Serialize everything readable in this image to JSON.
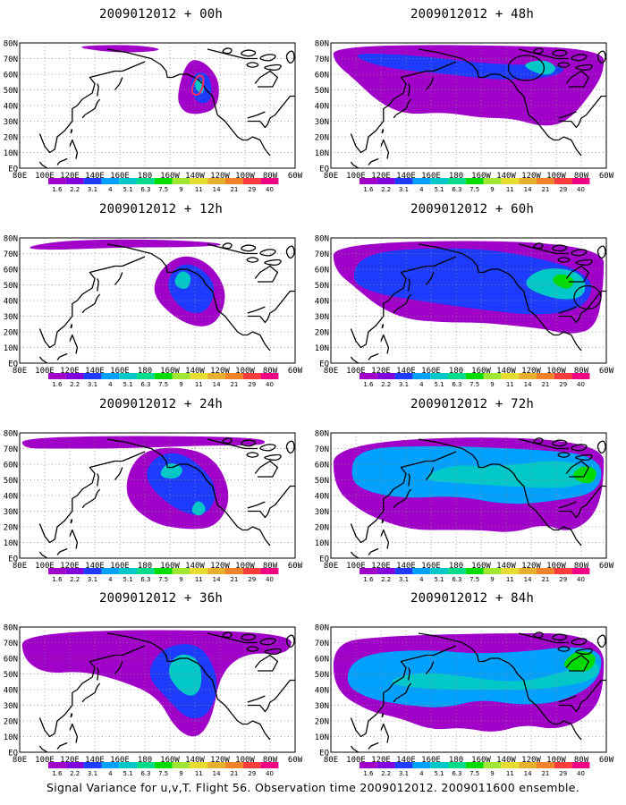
{
  "panels": [
    {
      "title": "2009012012 + 00h",
      "lead": "00h",
      "circles": 0
    },
    {
      "title": "2009012012 + 48h",
      "lead": "48h",
      "circles": 1
    },
    {
      "title": "2009012012 + 12h",
      "lead": "12h",
      "circles": 0
    },
    {
      "title": "2009012012 + 60h",
      "lead": "60h",
      "circles": 1
    },
    {
      "title": "2009012012 + 24h",
      "lead": "24h",
      "circles": 0
    },
    {
      "title": "2009012012 + 72h",
      "lead": "72h",
      "circles": 0
    },
    {
      "title": "2009012012 + 36h",
      "lead": "36h",
      "circles": 0
    },
    {
      "title": "2009012012 + 84h",
      "lead": "84h",
      "circles": 0
    }
  ],
  "map": {
    "lon_labels": [
      "80E",
      "100E",
      "120E",
      "140E",
      "160E",
      "180",
      "160W",
      "140W",
      "120W",
      "100W",
      "80W",
      "60W"
    ],
    "lat_labels": [
      "EQ",
      "10N",
      "20N",
      "30N",
      "40N",
      "50N",
      "60N",
      "70N",
      "80N"
    ],
    "lon_range_deg_east": [
      80,
      300
    ],
    "lat_range": [
      0,
      80
    ],
    "grid": "dotted"
  },
  "colorbar": {
    "labels": [
      "1.6",
      "2.2",
      "3.1",
      "4",
      "5.1",
      "6.3",
      "7.5",
      "9",
      "11",
      "14",
      "21",
      "29",
      "40"
    ],
    "colors": [
      "#a000c8",
      "#8200dc",
      "#1e3cff",
      "#00a0ff",
      "#00c8c8",
      "#00dc8c",
      "#00dc00",
      "#a0e632",
      "#e6dc32",
      "#e6af2d",
      "#f08228",
      "#fa3c3c",
      "#f00082"
    ]
  },
  "footer": "Signal Variance for u,v,T. Flight 56. Observation time 2009012012. 2009011600 ensemble."
}
